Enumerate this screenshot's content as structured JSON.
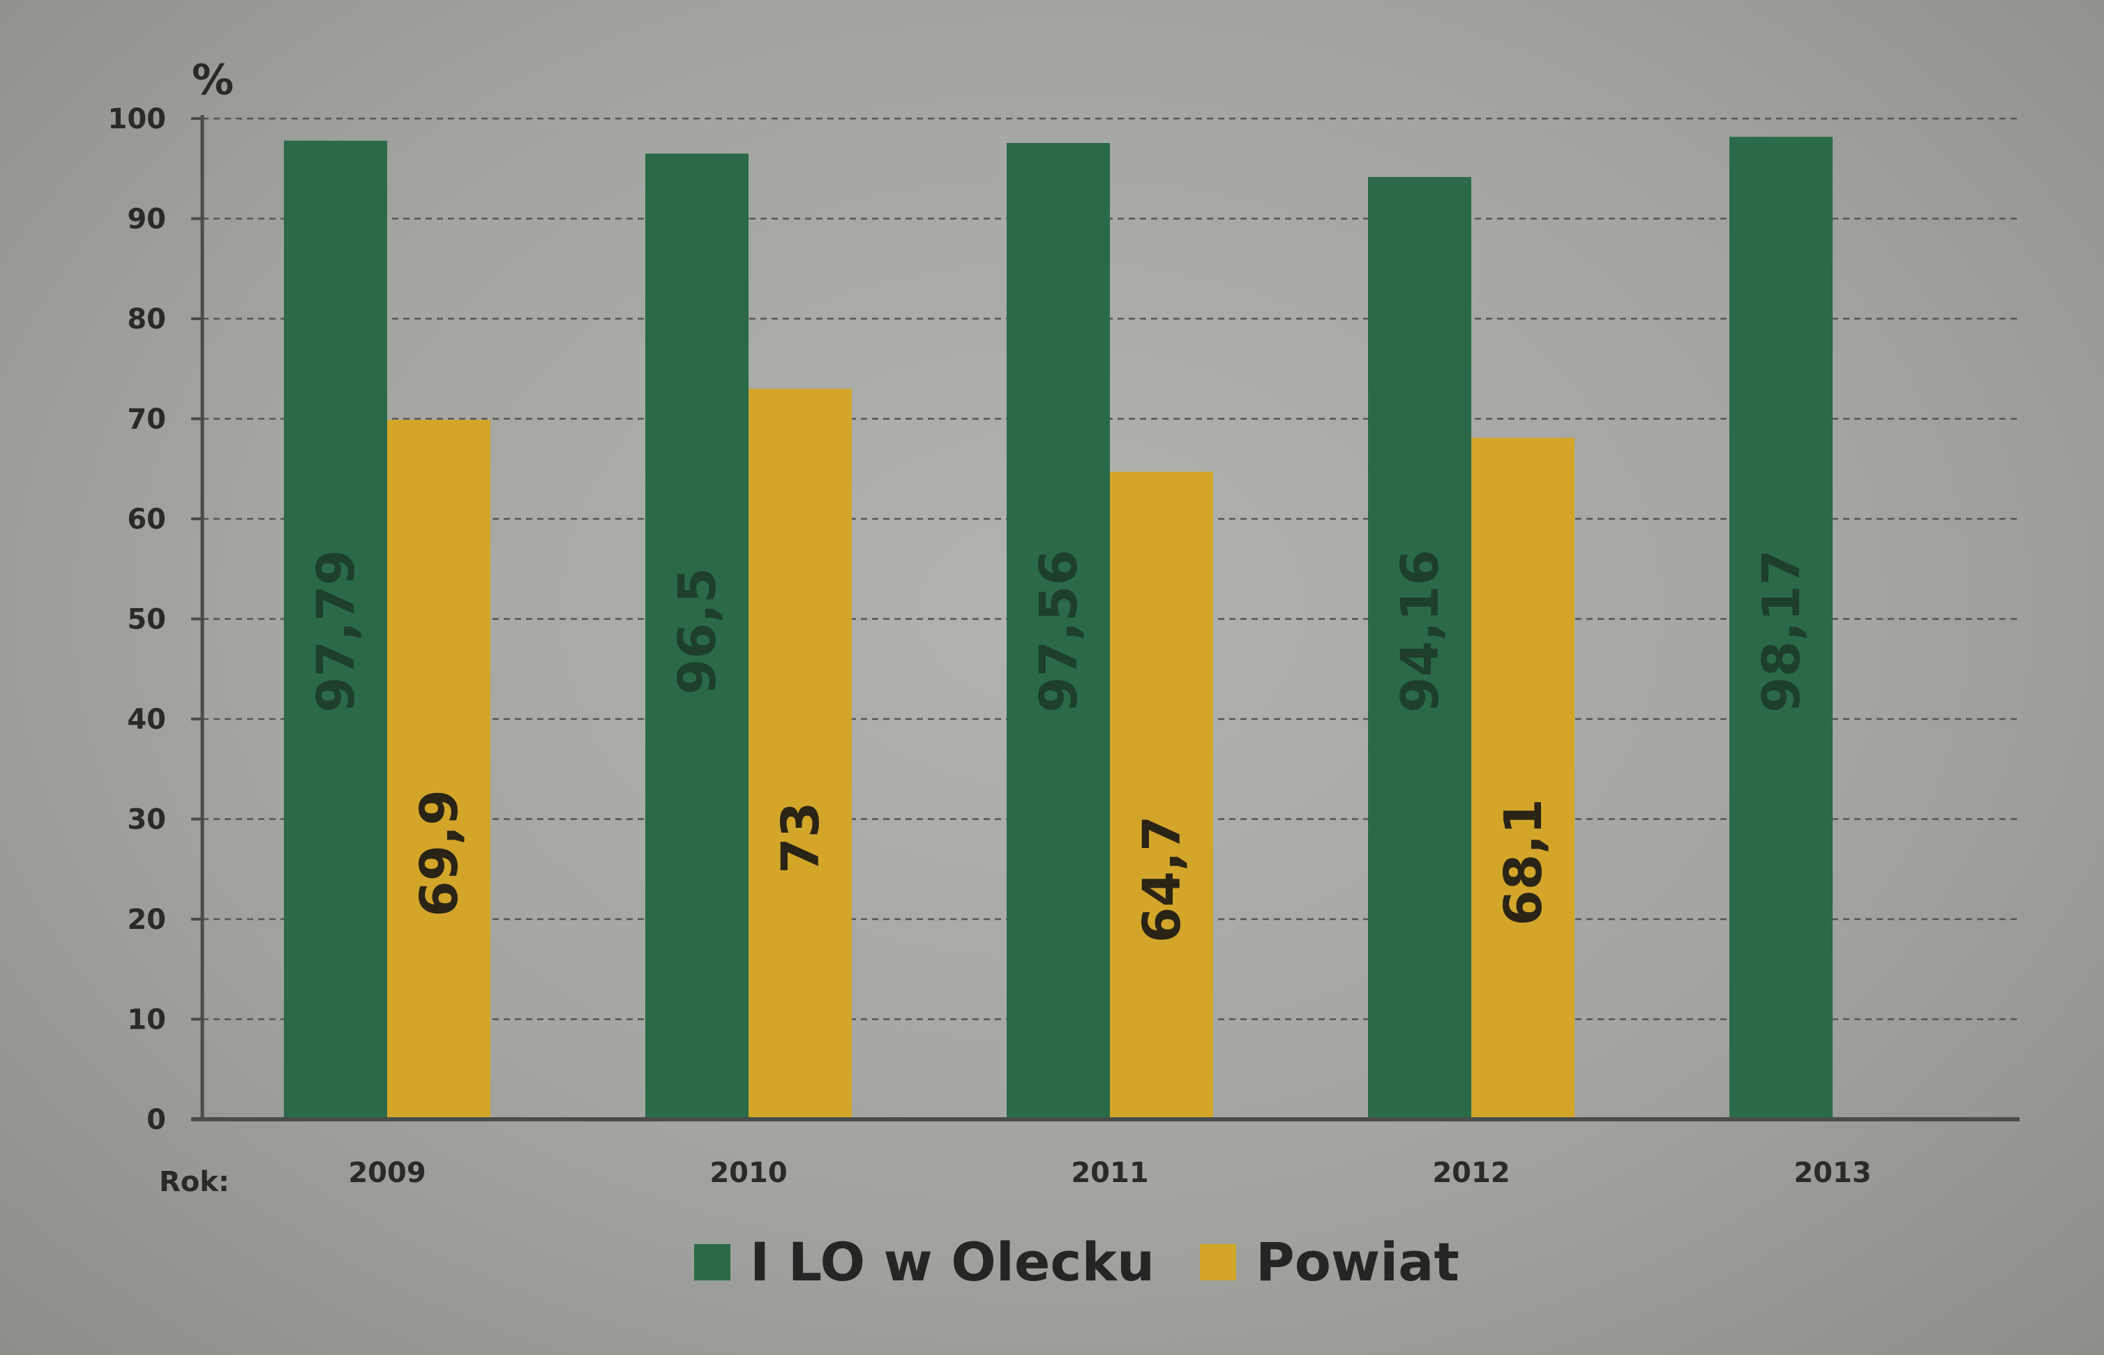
{
  "chart_data": {
    "type": "bar",
    "unit": "%",
    "x_prefix": "Rok:",
    "categories": [
      "2009",
      "2010",
      "2011",
      "2012",
      "2013"
    ],
    "series": [
      {
        "name": "I LO w Olecku",
        "color": "#2a6a48",
        "values": [
          97.79,
          96.5,
          97.56,
          94.16,
          98.17
        ],
        "labels": [
          "97,79",
          "96,5",
          "97,56",
          "94,16",
          "98,17"
        ]
      },
      {
        "name": "Powiat",
        "color": "#d3a62a",
        "values": [
          69.9,
          73,
          64.7,
          68.1,
          null
        ],
        "labels": [
          "69,9",
          "73",
          "64,7",
          "68,1",
          ""
        ]
      }
    ],
    "ylim": [
      0,
      100
    ],
    "yticks": [
      0,
      10,
      20,
      30,
      40,
      50,
      60,
      70,
      80,
      90,
      100
    ],
    "grid": true,
    "legend_position": "bottom-center",
    "colors": {
      "background": "#a5a7a2",
      "axis": "#4a4c49",
      "grid": "#55574f",
      "text": "#2a2b29",
      "label_on_green": "#1d3f2c",
      "label_on_gold": "#2a2416"
    }
  }
}
